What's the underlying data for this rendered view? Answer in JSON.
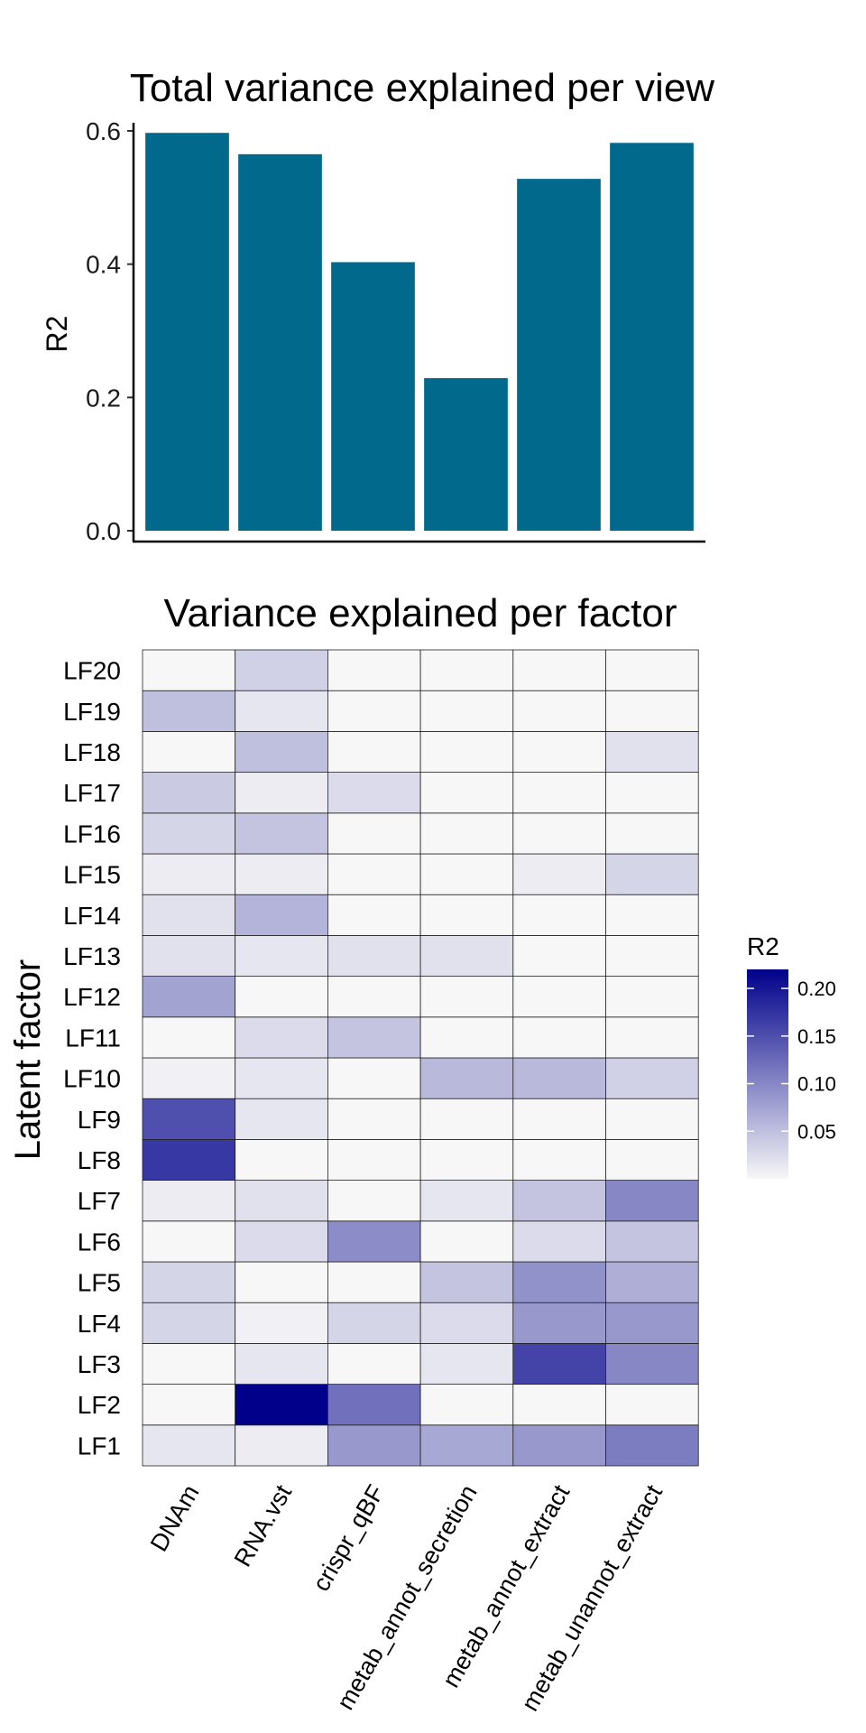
{
  "chart_data": [
    {
      "type": "bar",
      "title": "Total variance explained per view",
      "xlabel": "",
      "ylabel": "R2",
      "categories": [
        "DNAm",
        "RNA.vst",
        "crispr_qBF",
        "metab_annot_secretion",
        "metab_annot_extract",
        "metab_unannot_extract"
      ],
      "values": [
        0.597,
        0.565,
        0.403,
        0.229,
        0.528,
        0.582
      ],
      "ylim": [
        0,
        0.6
      ],
      "yticks": [
        "0.0",
        "0.2",
        "0.4",
        "0.6"
      ],
      "bar_color": "#00698c",
      "grid": false
    },
    {
      "type": "heatmap",
      "title": "Variance explained per factor",
      "ylabel": "Latent factor",
      "x_categories": [
        "DNAm",
        "RNA.vst",
        "crispr_qBF",
        "metab_annot_secretion",
        "metab_annot_extract",
        "metab_unannot_extract"
      ],
      "y_categories": [
        "LF1",
        "LF2",
        "LF3",
        "LF4",
        "LF5",
        "LF6",
        "LF7",
        "LF8",
        "LF9",
        "LF10",
        "LF11",
        "LF12",
        "LF13",
        "LF14",
        "LF15",
        "LF16",
        "LF17",
        "LF18",
        "LF19",
        "LF20"
      ],
      "values": [
        [
          0.015,
          0.01,
          0.085,
          0.07,
          0.085,
          0.11
        ],
        [
          0.0,
          0.225,
          0.12,
          0.0,
          0.0,
          0.0
        ],
        [
          0.0,
          0.015,
          0.0,
          0.015,
          0.16,
          0.1
        ],
        [
          0.03,
          0.005,
          0.03,
          0.025,
          0.085,
          0.085
        ],
        [
          0.03,
          0.0,
          0.0,
          0.045,
          0.09,
          0.065
        ],
        [
          0.0,
          0.025,
          0.095,
          0.0,
          0.025,
          0.045
        ],
        [
          0.01,
          0.02,
          0.0,
          0.015,
          0.045,
          0.1
        ],
        [
          0.17,
          0.0,
          0.0,
          0.0,
          0.0,
          0.0
        ],
        [
          0.15,
          0.015,
          0.0,
          0.0,
          0.0,
          0.0
        ],
        [
          0.005,
          0.015,
          0.0,
          0.055,
          0.055,
          0.035
        ],
        [
          0.0,
          0.025,
          0.045,
          0.0,
          0.0,
          0.0
        ],
        [
          0.075,
          0.0,
          0.0,
          0.0,
          0.0,
          0.0
        ],
        [
          0.02,
          0.015,
          0.02,
          0.02,
          0.0,
          0.0
        ],
        [
          0.02,
          0.06,
          0.0,
          0.0,
          0.0,
          0.0
        ],
        [
          0.01,
          0.01,
          0.0,
          0.0,
          0.01,
          0.03
        ],
        [
          0.03,
          0.045,
          0.0,
          0.0,
          0.0,
          0.0
        ],
        [
          0.04,
          0.01,
          0.025,
          0.0,
          0.0,
          0.0
        ],
        [
          0.0,
          0.05,
          0.0,
          0.0,
          0.0,
          0.02
        ],
        [
          0.05,
          0.015,
          0.0,
          0.0,
          0.0,
          0.0
        ],
        [
          0.0,
          0.035,
          0.0,
          0.0,
          0.0,
          0.0
        ]
      ],
      "zlim": [
        0,
        0.22
      ],
      "color_low": "#f7f7f7",
      "color_high": "#00008b",
      "legend": {
        "title": "R2",
        "ticks": [
          "0.05",
          "0.10",
          "0.15",
          "0.20"
        ],
        "position": "right"
      }
    }
  ]
}
